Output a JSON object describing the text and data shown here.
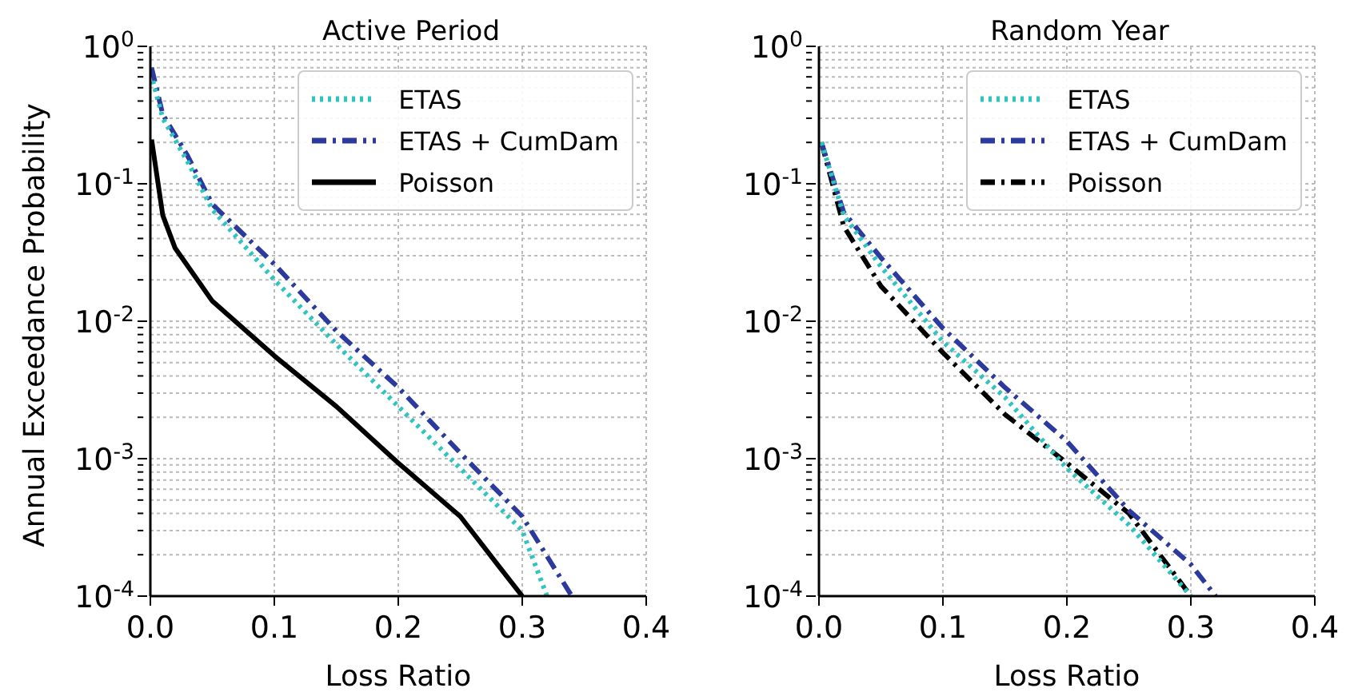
{
  "chart_data": [
    {
      "type": "line",
      "title": "Active Period",
      "xlabel": "Loss Ratio",
      "ylabel": "Annual Exceedance Probability",
      "log": "y",
      "grid": true,
      "legend": "top right",
      "xlim": [
        0,
        0.4
      ],
      "xticks": [
        {
          "value": 0,
          "label": "0.0"
        },
        0.1,
        0.2,
        0.3,
        0.4
      ],
      "ylim": [
        0.0001,
        1
      ],
      "yticks": [
        {
          "value": 0.0001,
          "label": "10$^{-4}$"
        },
        {
          "value": 0.0002,
          "label": null
        },
        {
          "value": 0.0003,
          "label": null
        },
        {
          "value": 0.0004,
          "label": null
        },
        {
          "value": 0.0005,
          "label": null
        },
        {
          "value": 0.0006,
          "label": null
        },
        {
          "value": 0.0007,
          "label": null
        },
        {
          "value": 0.0008,
          "label": null
        },
        {
          "value": 0.0009,
          "label": null
        },
        {
          "value": 0.001,
          "label": "10$^{-3}$"
        },
        {
          "value": 0.002,
          "label": null
        },
        {
          "value": 0.003,
          "label": null
        },
        {
          "value": 0.004,
          "label": null
        },
        {
          "value": 0.005,
          "label": null
        },
        {
          "value": 0.006,
          "label": null
        },
        {
          "value": 0.007,
          "label": null
        },
        {
          "value": 0.008,
          "label": null
        },
        {
          "value": 0.009,
          "label": null
        },
        {
          "value": 0.01,
          "label": "10$^{-2}$"
        },
        {
          "value": 0.02,
          "label": null
        },
        {
          "value": 0.03,
          "label": null
        },
        {
          "value": 0.04,
          "label": null
        },
        {
          "value": 0.05,
          "label": null
        },
        {
          "value": 0.06,
          "label": null
        },
        {
          "value": 0.07,
          "label": null
        },
        {
          "value": 0.08,
          "label": null
        },
        {
          "value": 0.09,
          "label": null
        },
        {
          "value": 0.1,
          "label": "10$^{-1}$"
        },
        {
          "value": 0.2,
          "label": null
        },
        {
          "value": 0.3,
          "label": null
        },
        {
          "value": 0.4,
          "label": null
        },
        {
          "value": 0.5,
          "label": null
        },
        {
          "value": 0.6,
          "label": null
        },
        {
          "value": 0.7,
          "label": null
        },
        {
          "value": 0.8,
          "label": null
        },
        {
          "value": 0.9,
          "label": null
        },
        {
          "value": 1,
          "label": "10$^{0}$"
        }
      ],
      "series": [
        {
          "name": "ETAS",
          "color": "#2ec4c0",
          "line_style": "dotted",
          "x": [
            0.002,
            0.01,
            0.03,
            0.05,
            0.1,
            0.15,
            0.2,
            0.25,
            0.3,
            0.32
          ],
          "values": [
            0.56,
            0.3,
            0.145,
            0.065,
            0.02,
            0.0068,
            0.0024,
            0.00085,
            0.0003,
            0.0001
          ]
        },
        {
          "name": "ETAS + CumDam",
          "color": "#2b3a9c",
          "line_style": "dashed",
          "x": [
            0.001,
            0.01,
            0.03,
            0.05,
            0.1,
            0.15,
            0.2,
            0.25,
            0.3,
            0.34
          ],
          "values": [
            0.7,
            0.32,
            0.16,
            0.071,
            0.026,
            0.0085,
            0.0033,
            0.0011,
            0.00038,
            0.0001
          ]
        },
        {
          "name": "Poisson",
          "color": "#000000",
          "line_style": "solid",
          "x": [
            0.001,
            0.01,
            0.02,
            0.05,
            0.1,
            0.15,
            0.2,
            0.25,
            0.28,
            0.3
          ],
          "values": [
            0.21,
            0.059,
            0.034,
            0.014,
            0.0056,
            0.0024,
            0.00093,
            0.00038,
            0.00017,
            0.0001
          ]
        }
      ]
    },
    {
      "type": "line",
      "title": "Random Year",
      "xlabel": "Loss Ratio",
      "log": "y",
      "grid": true,
      "legend": "top right",
      "xlim": [
        0,
        0.4
      ],
      "xticks": [
        {
          "value": 0,
          "label": "0.0"
        },
        0.1,
        0.2,
        0.3,
        0.4
      ],
      "ylim": [
        0.0001,
        1
      ],
      "yticks": [
        {
          "value": 0.0001,
          "label": "10$^{-4}$"
        },
        {
          "value": 0.0002,
          "label": null
        },
        {
          "value": 0.0003,
          "label": null
        },
        {
          "value": 0.0004,
          "label": null
        },
        {
          "value": 0.0005,
          "label": null
        },
        {
          "value": 0.0006,
          "label": null
        },
        {
          "value": 0.0007,
          "label": null
        },
        {
          "value": 0.0008,
          "label": null
        },
        {
          "value": 0.0009,
          "label": null
        },
        {
          "value": 0.001,
          "label": "10$^{-3}$"
        },
        {
          "value": 0.002,
          "label": null
        },
        {
          "value": 0.003,
          "label": null
        },
        {
          "value": 0.004,
          "label": null
        },
        {
          "value": 0.005,
          "label": null
        },
        {
          "value": 0.006,
          "label": null
        },
        {
          "value": 0.007,
          "label": null
        },
        {
          "value": 0.008,
          "label": null
        },
        {
          "value": 0.009,
          "label": null
        },
        {
          "value": 0.01,
          "label": "10$^{-2}$"
        },
        {
          "value": 0.02,
          "label": null
        },
        {
          "value": 0.03,
          "label": null
        },
        {
          "value": 0.04,
          "label": null
        },
        {
          "value": 0.05,
          "label": null
        },
        {
          "value": 0.06,
          "label": null
        },
        {
          "value": 0.07,
          "label": null
        },
        {
          "value": 0.08,
          "label": null
        },
        {
          "value": 0.09,
          "label": null
        },
        {
          "value": 0.1,
          "label": "10$^{-1}$"
        },
        {
          "value": 0.2,
          "label": null
        },
        {
          "value": 0.3,
          "label": null
        },
        {
          "value": 0.4,
          "label": null
        },
        {
          "value": 0.5,
          "label": null
        },
        {
          "value": 0.6,
          "label": null
        },
        {
          "value": 0.7,
          "label": null
        },
        {
          "value": 0.8,
          "label": null
        },
        {
          "value": 0.9,
          "label": null
        },
        {
          "value": 1,
          "label": "10$^{0}$"
        }
      ],
      "series": [
        {
          "name": "ETAS",
          "color": "#2ec4c0",
          "line_style": "dotted",
          "x": [
            0.002,
            0.02,
            0.05,
            0.1,
            0.15,
            0.2,
            0.25,
            0.3
          ],
          "values": [
            0.2,
            0.059,
            0.025,
            0.0071,
            0.0028,
            0.00085,
            0.00033,
            0.0001
          ]
        },
        {
          "name": "ETAS + CumDam",
          "color": "#2b3a9c",
          "line_style": "dashed",
          "x": [
            0.002,
            0.02,
            0.05,
            0.1,
            0.15,
            0.2,
            0.25,
            0.3,
            0.32
          ],
          "values": [
            0.2,
            0.062,
            0.029,
            0.0089,
            0.0033,
            0.00134,
            0.00042,
            0.00017,
            0.0001
          ]
        },
        {
          "name": "Poisson",
          "color": "#000000",
          "line_style": "dashed",
          "x": [
            0.002,
            0.02,
            0.05,
            0.1,
            0.15,
            0.2,
            0.25,
            0.3
          ],
          "values": [
            0.2,
            0.049,
            0.018,
            0.0059,
            0.0021,
            0.00093,
            0.0004,
            0.0001
          ]
        }
      ]
    }
  ]
}
